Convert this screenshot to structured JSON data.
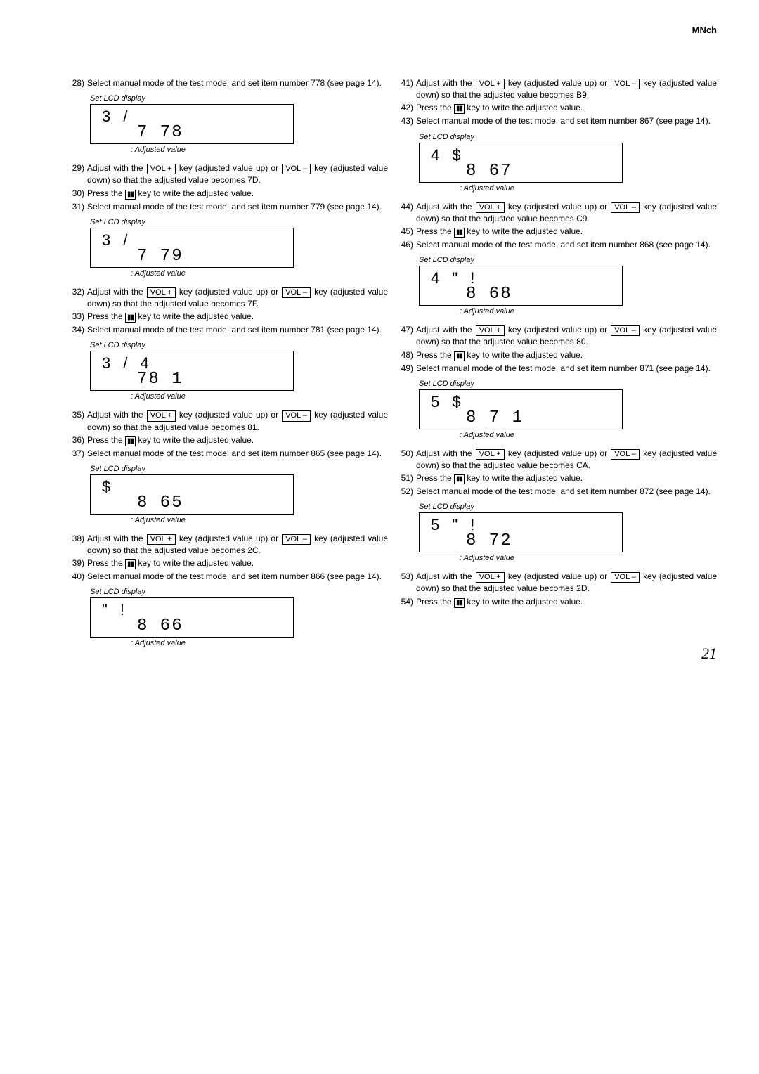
{
  "header": "MNch",
  "page_number": "21",
  "keys": {
    "volup": "VOL +",
    "voldown": "VOL –",
    "pause": "▮▮"
  },
  "labels": {
    "set_lcd": "Set LCD display",
    "adjusted": ": Adjusted value"
  },
  "step28": {
    "num": "28)",
    "a": "Select manual mode of the test mode, and set item number",
    "b": "778 (see page 14)."
  },
  "lcd1": {
    "r1": "3  /",
    "r2": "7 78"
  },
  "step29": {
    "num": "29)",
    "a": "Adjust with the ",
    "b": " key (adjusted value up) or ",
    "c": " key (adjusted value down) so that the adjusted value becomes 7D."
  },
  "step30": {
    "num": "30)",
    "a": "Press the ",
    "b": " key to write the adjusted value."
  },
  "step31": {
    "num": "31)",
    "a": "Select manual mode of the test mode, and set item number",
    "b": "779 (see page 14)."
  },
  "lcd2": {
    "r1": "3  /",
    "r2": "7 79"
  },
  "step32": {
    "num": "32)",
    "a": "Adjust with the ",
    "b": " key (adjusted value up) or ",
    "c": " key (adjusted value down) so that the adjusted value becomes 7F."
  },
  "step33": {
    "num": "33)",
    "a": "Press the ",
    "b": " key to write the adjusted value."
  },
  "step34": {
    "num": "34)",
    "a": "Select manual mode of the test mode, and set item number",
    "b": "781 (see page 14)."
  },
  "lcd3": {
    "r1": "3  /  4",
    "r2": "78 1"
  },
  "step35": {
    "num": "35)",
    "a": "Adjust with the ",
    "b": " key (adjusted value up) or ",
    "c": " key (adjusted value down) so that the adjusted value becomes 81."
  },
  "step36": {
    "num": "36)",
    "a": "Press the ",
    "b": " key to write the adjusted value."
  },
  "step37": {
    "num": "37)",
    "a": "Select manual mode of the test mode, and set item number",
    "b": "865 (see page 14)."
  },
  "lcd4": {
    "r1": "    $",
    "r2": "8 65"
  },
  "step38": {
    "num": "38)",
    "a": "Adjust with the ",
    "b": " key (adjusted value up) or ",
    "c": " key (adjusted value down) so that the adjusted value becomes 2C."
  },
  "step39": {
    "num": "39)",
    "a": "Press the ",
    "b": " key to write the adjusted value."
  },
  "step40": {
    "num": "40)",
    "a": "Select manual mode of the test mode, and set item number",
    "b": "866 (see page 14)."
  },
  "lcd5": {
    "r1": "   \"  !",
    "r2": "8 66"
  },
  "step41": {
    "num": "41)",
    "a": "Adjust with the ",
    "b": " key (adjusted value up) or ",
    "c": " key (adjusted value down) so that the adjusted value becomes B9."
  },
  "step42": {
    "num": "42)",
    "a": "Press the ",
    "b": " key to write the adjusted value."
  },
  "step43": {
    "num": "43)",
    "a": "Select manual mode of the test mode, and set item number",
    "b": "867 (see page 14)."
  },
  "lcd6": {
    "r1": "4    $",
    "r2": "8 67"
  },
  "step44": {
    "num": "44)",
    "a": "Adjust with the ",
    "b": " key (adjusted value up) or ",
    "c": " key (adjusted value down) so that the adjusted value becomes C9."
  },
  "step45": {
    "num": "45)",
    "a": "Press the ",
    "b": " key to write the adjusted value."
  },
  "step46": {
    "num": "46)",
    "a": "Select manual mode of the test mode, and set item number",
    "b": "868 (see page 14)."
  },
  "lcd7": {
    "r1": "4  \"  !",
    "r2": "8 68"
  },
  "step47": {
    "num": "47)",
    "a": "Adjust with the ",
    "b": " key (adjusted value up) or ",
    "c": " key (adjusted value down) so that the adjusted value becomes 80."
  },
  "step48": {
    "num": "48)",
    "a": "Press the ",
    "b": " key to write the adjusted value."
  },
  "step49": {
    "num": "49)",
    "a": "Select manual mode of the test mode, and set item number",
    "b": "871 (see page 14)."
  },
  "lcd8": {
    "r1": "5    $",
    "r2": "8 7 1"
  },
  "step50": {
    "num": "50)",
    "a": "Adjust with the ",
    "b": " key (adjusted value up) or ",
    "c": " key (adjusted value down) so that the adjusted value becomes CA."
  },
  "step51": {
    "num": "51)",
    "a": "Press the ",
    "b": " key to write the adjusted value."
  },
  "step52": {
    "num": "52)",
    "a": "Select manual mode of the test mode, and set item number",
    "b": "872 (see page 14)."
  },
  "lcd9": {
    "r1": "5  \"  !",
    "r2": "8 72"
  },
  "step53": {
    "num": "53)",
    "a": "Adjust with the ",
    "b": " key (adjusted value up) or ",
    "c": " key (adjusted value down) so that the adjusted value becomes 2D."
  },
  "step54": {
    "num": "54)",
    "a": "Press the ",
    "b": " key to write the adjusted value."
  }
}
